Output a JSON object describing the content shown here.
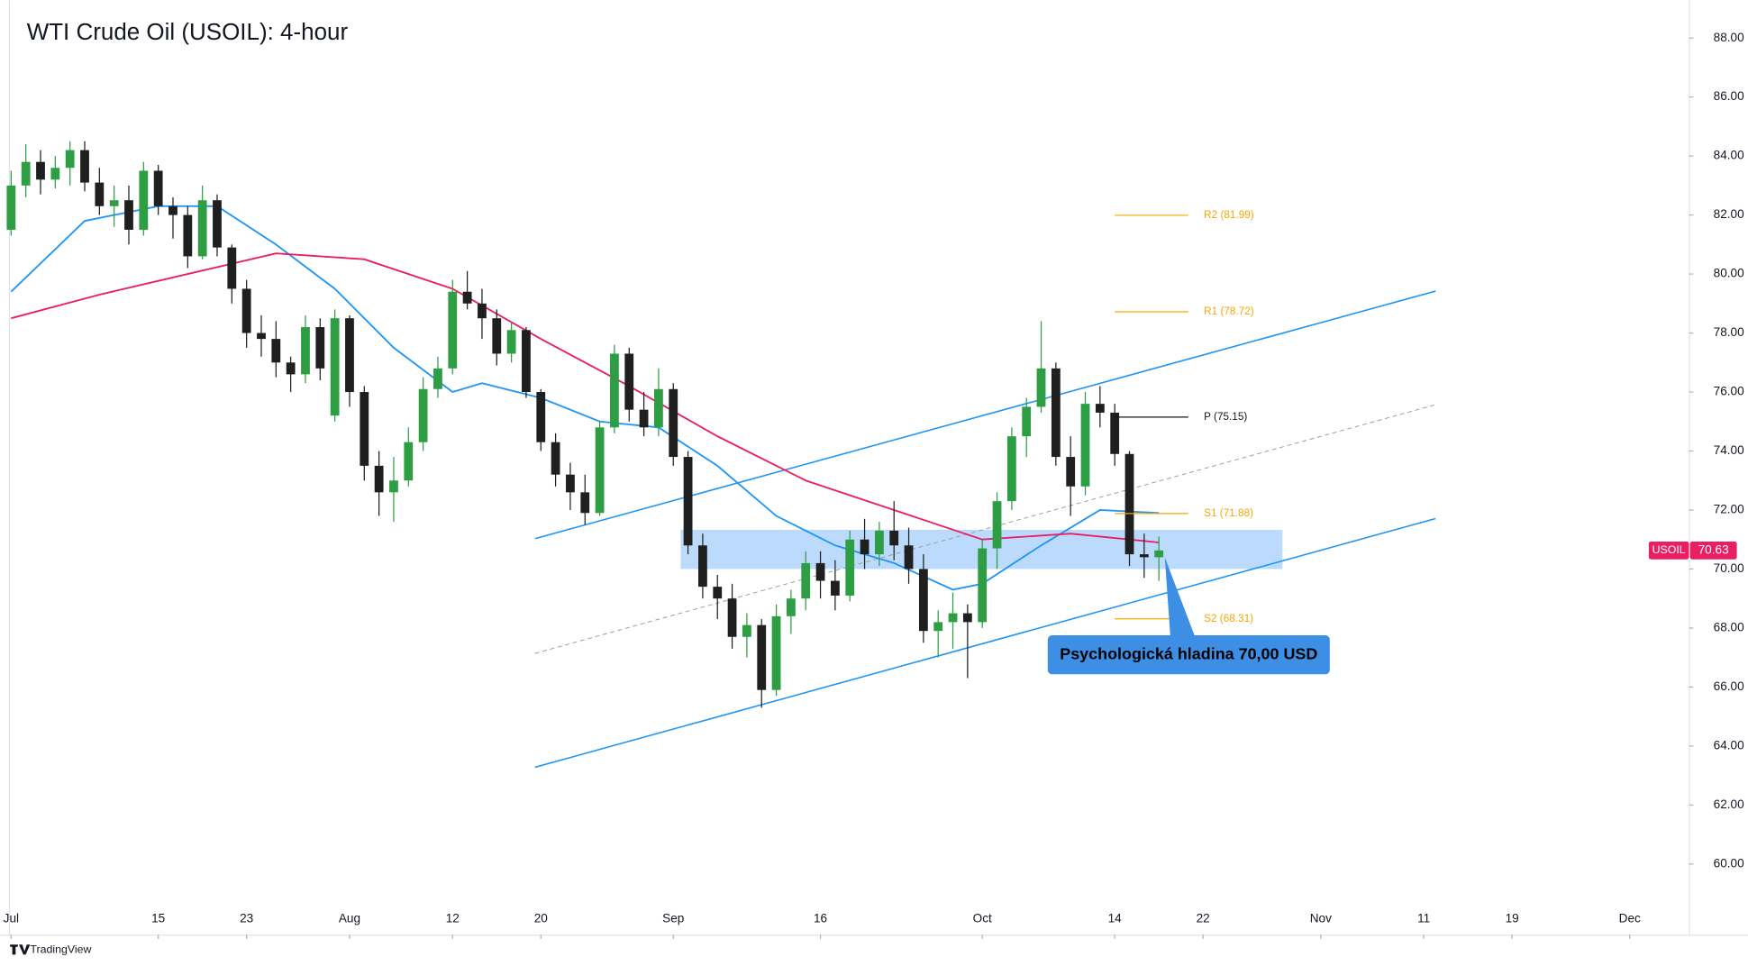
{
  "chart_data": {
    "type": "candlestick",
    "title": "WTI Crude Oil (USOIL): 4-hour",
    "x": [
      0,
      1,
      2,
      3,
      4,
      5,
      6,
      7,
      8,
      9,
      10,
      11,
      12,
      13,
      14,
      15,
      16,
      17,
      18,
      19,
      20,
      21,
      22,
      23,
      24,
      25,
      26,
      27,
      28,
      29,
      30,
      31,
      32,
      33,
      34,
      35,
      36,
      37,
      38,
      39,
      40,
      41,
      42,
      43,
      44,
      45,
      46,
      47,
      48,
      49,
      50,
      51,
      52,
      53,
      54,
      55,
      56,
      57,
      58,
      59,
      60,
      61,
      62,
      63,
      64,
      65,
      66,
      67,
      68,
      69,
      70,
      71,
      72,
      73,
      74,
      75,
      76,
      77,
      78
    ],
    "open": [
      81.5,
      83.0,
      83.8,
      83.2,
      83.6,
      84.2,
      83.1,
      82.3,
      82.5,
      81.5,
      83.5,
      82.3,
      82.0,
      80.6,
      82.5,
      80.9,
      79.5,
      78.0,
      77.8,
      77.0,
      76.6,
      78.2,
      75.2,
      78.5,
      76.0,
      73.5,
      72.6,
      73.0,
      74.3,
      76.1,
      76.8,
      79.4,
      79.0,
      78.5,
      77.3,
      78.1,
      76.0,
      74.3,
      73.2,
      72.6,
      71.9,
      74.8,
      77.3,
      75.4,
      74.8,
      76.1,
      73.8,
      70.8,
      69.4,
      69.0,
      67.7,
      68.1,
      65.9,
      68.4,
      69.0,
      70.2,
      69.6,
      69.1,
      71.0,
      70.5,
      71.3,
      70.8,
      70.0,
      67.9,
      68.2,
      68.5,
      68.2,
      70.7,
      72.3,
      74.5,
      75.5,
      76.8,
      73.8,
      72.8,
      75.6,
      75.3,
      73.9,
      70.5,
      70.4
    ],
    "high": [
      83.5,
      84.4,
      84.2,
      84.0,
      84.5,
      84.5,
      83.6,
      83.0,
      83.0,
      83.8,
      83.7,
      82.6,
      82.3,
      83.0,
      82.7,
      81.0,
      79.8,
      78.6,
      78.4,
      77.2,
      78.6,
      78.5,
      78.8,
      78.6,
      76.2,
      74.0,
      73.8,
      74.8,
      76.5,
      77.2,
      79.8,
      80.1,
      79.5,
      78.8,
      78.4,
      78.2,
      76.1,
      74.6,
      73.6,
      73.2,
      75.0,
      77.6,
      77.5,
      76.0,
      76.8,
      76.3,
      74.0,
      71.2,
      69.8,
      69.5,
      68.5,
      68.3,
      68.8,
      69.3,
      70.6,
      70.6,
      70.3,
      71.3,
      71.7,
      71.6,
      72.3,
      71.4,
      70.5,
      68.6,
      69.2,
      68.8,
      71.0,
      72.6,
      74.8,
      75.8,
      78.4,
      77.0,
      74.5,
      76.0,
      76.2,
      75.6,
      74.0,
      71.2,
      71.1
    ],
    "low": [
      81.3,
      82.6,
      82.7,
      82.9,
      83.0,
      82.8,
      82.0,
      81.6,
      81.0,
      81.3,
      82.0,
      81.2,
      80.2,
      80.5,
      80.6,
      79.0,
      77.5,
      77.2,
      76.5,
      76.0,
      76.3,
      76.4,
      75.0,
      75.5,
      73.0,
      71.8,
      71.6,
      72.8,
      74.0,
      75.8,
      76.6,
      78.8,
      77.8,
      76.9,
      77.0,
      75.8,
      74.0,
      72.8,
      72.0,
      71.5,
      71.8,
      74.6,
      75.0,
      74.5,
      74.5,
      73.5,
      70.5,
      69.0,
      68.3,
      67.3,
      67.0,
      65.3,
      65.7,
      67.8,
      68.6,
      69.0,
      68.6,
      68.9,
      70.0,
      70.1,
      70.3,
      69.5,
      67.5,
      67.0,
      67.3,
      66.3,
      68.0,
      70.0,
      72.0,
      73.8,
      75.3,
      73.5,
      71.8,
      72.5,
      74.8,
      73.5,
      70.1,
      69.7,
      69.6
    ],
    "close": [
      83.0,
      83.8,
      83.2,
      83.6,
      84.2,
      83.1,
      82.3,
      82.5,
      81.5,
      83.5,
      82.3,
      82.0,
      80.6,
      82.5,
      80.9,
      79.5,
      78.0,
      77.8,
      77.0,
      76.6,
      78.2,
      76.8,
      78.5,
      76.0,
      73.5,
      72.6,
      73.0,
      74.3,
      76.1,
      76.8,
      79.4,
      79.0,
      78.5,
      77.3,
      78.1,
      76.0,
      74.3,
      73.2,
      72.6,
      71.9,
      74.8,
      77.3,
      75.4,
      74.8,
      76.1,
      73.8,
      70.8,
      69.4,
      69.0,
      67.7,
      68.1,
      65.9,
      68.4,
      69.0,
      70.2,
      69.6,
      69.1,
      71.0,
      70.5,
      71.3,
      70.8,
      70.0,
      67.9,
      68.2,
      68.5,
      68.2,
      70.7,
      72.3,
      74.5,
      75.5,
      76.8,
      73.8,
      72.8,
      75.6,
      75.3,
      73.9,
      70.5,
      70.4,
      70.63
    ],
    "up_color": "#2e9e44",
    "down_color": "#1f1f1f",
    "moving_averages": [
      {
        "color": "#2196f3",
        "x": [
          0,
          5,
          10,
          14,
          18,
          22,
          26,
          30,
          32,
          36,
          40,
          44,
          48,
          52,
          56,
          60,
          64,
          66,
          70,
          74,
          78
        ],
        "values": [
          79.4,
          81.8,
          82.3,
          82.3,
          81.0,
          79.5,
          77.5,
          76.0,
          76.3,
          75.8,
          75.0,
          74.8,
          73.5,
          71.8,
          70.8,
          70.2,
          69.3,
          69.5,
          70.8,
          72.0,
          71.9
        ]
      },
      {
        "color": "#e91e63",
        "x": [
          0,
          6,
          12,
          18,
          24,
          30,
          36,
          42,
          48,
          54,
          60,
          66,
          72,
          78
        ],
        "values": [
          78.5,
          79.3,
          80.0,
          80.7,
          80.5,
          79.5,
          77.8,
          76.2,
          74.5,
          73.0,
          72.0,
          71.0,
          71.2,
          70.9
        ]
      }
    ],
    "channel": [
      {
        "color": "#2196f3",
        "dashed": false,
        "x": [
          35.6,
          96.8
        ],
        "values": [
          71.03,
          79.42
        ]
      },
      {
        "color": "#2196f3",
        "dashed": false,
        "x": [
          35.6,
          96.8
        ],
        "values": [
          63.28,
          71.71
        ]
      },
      {
        "color": "#9e9e9e",
        "dashed": true,
        "x": [
          35.6,
          96.8
        ],
        "values": [
          67.14,
          75.57
        ]
      }
    ],
    "zone": {
      "color": "#90c2f9",
      "x": [
        45.5,
        86.4
      ],
      "values": [
        71.33,
        70.0
      ]
    },
    "pivots": {
      "x": [
        75,
        80
      ],
      "levels": [
        {
          "label": "R2 (81.99)",
          "value": 81.99,
          "color": "#f7a600"
        },
        {
          "label": "R1 (78.72)",
          "value": 78.72,
          "color": "#f7a600"
        },
        {
          "label": "P (75.15)",
          "value": 75.15,
          "color": "#131722"
        },
        {
          "label": "S1 (71.88)",
          "value": 71.88,
          "color": "#f7a600"
        },
        {
          "label": "S2 (68.31)",
          "value": 68.31,
          "color": "#f7a600"
        }
      ]
    },
    "annotation": {
      "text": "Psychologická hladina 70,00 USD",
      "x": 78.4,
      "y": 70.4,
      "color": "#3d8fe6"
    },
    "last_price": {
      "symbol": "USOIL",
      "value": 70.63,
      "color": "#e91e63"
    },
    "xlim": [
      -0.15,
      114.02
    ],
    "xticks": [
      {
        "value": 0,
        "label": "Jul"
      },
      {
        "value": 10,
        "label": "15"
      },
      {
        "value": 16,
        "label": "23"
      },
      {
        "value": 23,
        "label": "Aug"
      },
      {
        "value": 30,
        "label": "12"
      },
      {
        "value": 36,
        "label": "20"
      },
      {
        "value": 45,
        "label": "Sep"
      },
      {
        "value": 55,
        "label": "16"
      },
      {
        "value": 66,
        "label": "Oct"
      },
      {
        "value": 75,
        "label": "14"
      },
      {
        "value": 81,
        "label": "22"
      },
      {
        "value": 89,
        "label": "Nov"
      },
      {
        "value": 96,
        "label": "11"
      },
      {
        "value": 102,
        "label": "19"
      },
      {
        "value": 110,
        "label": "Dec"
      }
    ],
    "ylim": [
      57.61,
      89.28
    ],
    "yticks": [
      {
        "value": 60,
        "label": "60.00"
      },
      {
        "value": 62,
        "label": "62.00"
      },
      {
        "value": 64,
        "label": "64.00"
      },
      {
        "value": 66,
        "label": "66.00"
      },
      {
        "value": 68,
        "label": "68.00"
      },
      {
        "value": 70,
        "label": "70.00"
      },
      {
        "value": 72,
        "label": "72.00"
      },
      {
        "value": 74,
        "label": "74.00"
      },
      {
        "value": 76,
        "label": "76.00"
      },
      {
        "value": 78,
        "label": "78.00"
      },
      {
        "value": 80,
        "label": "80.00"
      },
      {
        "value": 82,
        "label": "82.00"
      },
      {
        "value": 84,
        "label": "84.00"
      },
      {
        "value": 86,
        "label": "86.00"
      },
      {
        "value": 88,
        "label": "88.00"
      }
    ],
    "grid": false,
    "footer": "TradingView"
  }
}
